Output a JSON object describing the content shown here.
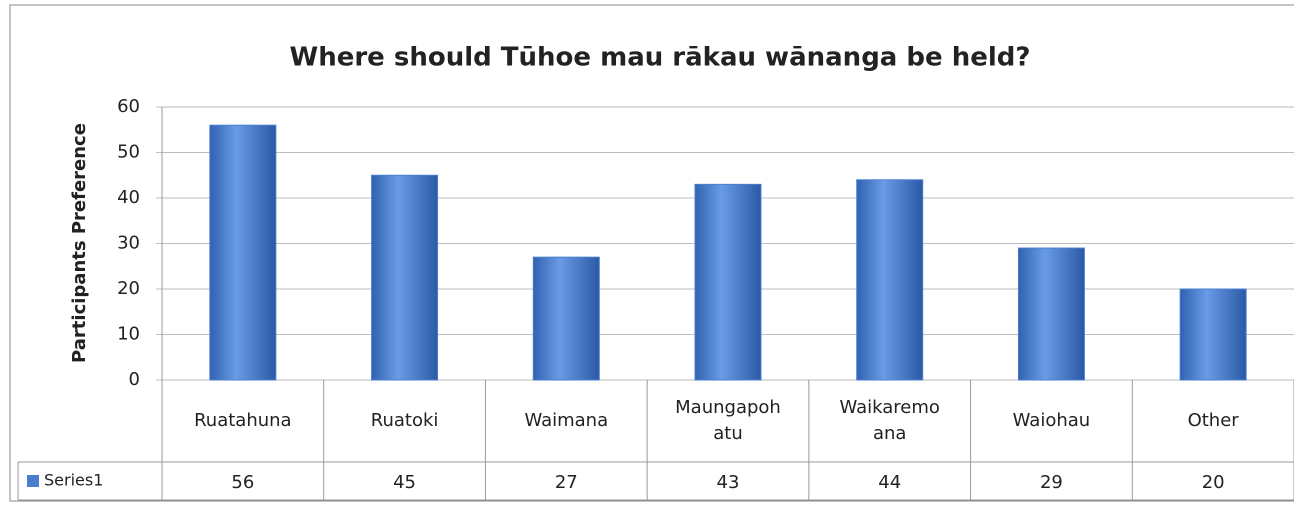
{
  "chart_data": {
    "type": "bar",
    "title": "Where should Tūhoe mau rākau wānanga be held?",
    "y_label": "Participants Preference",
    "categories": [
      "Ruatahuna",
      "Ruatoki",
      "Waimana",
      "Maungapohatu",
      "Waikaremoana",
      "Waiohau",
      "Other"
    ],
    "series": [
      {
        "name": "Series1",
        "color": "#4a7fd0",
        "values": [
          56,
          45,
          27,
          43,
          44,
          29,
          20
        ]
      }
    ],
    "ylim": [
      0,
      60
    ],
    "yticks": [
      0,
      10,
      20,
      30,
      40,
      50,
      60
    ],
    "grid": true,
    "data_table": true
  }
}
